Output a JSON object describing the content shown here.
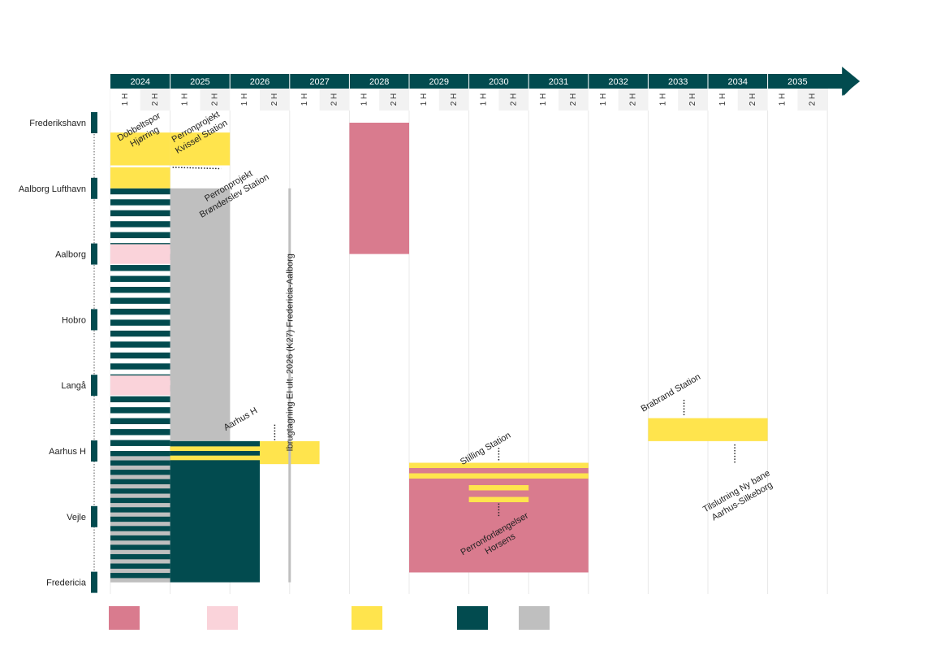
{
  "chart_data": {
    "type": "gantt",
    "title": "",
    "years": [
      "2024",
      "2025",
      "2026",
      "2027",
      "2028",
      "2029",
      "2030",
      "2031",
      "2032",
      "2033",
      "2034",
      "2035"
    ],
    "halves": [
      "1 H",
      "2 H"
    ],
    "stations": [
      "Frederikshavn",
      "Aalborg Lufthavn",
      "Aalborg",
      "Hobro",
      "Langå",
      "Aarhus H",
      "Vejle",
      "Fredericia"
    ],
    "colors": {
      "rose": "#d97b8e",
      "light_pink": "#fad3da",
      "yellow": "#ffe44d",
      "teal": "#024b4f",
      "grey": "#bfbfbf",
      "header": "#024b4f",
      "subheader": "#f2f2f2"
    },
    "bars": [
      {
        "name": "rose-2028",
        "color": "rose",
        "start": 2028.0,
        "end": 2029.0,
        "from": "Frederikshavn",
        "to": "Aalborg"
      },
      {
        "name": "yellow-hjorring",
        "color": "yellow",
        "start": 2024.0,
        "end": 2025.0,
        "from": 0.15,
        "to": 0.65
      },
      {
        "name": "yellow-hjorring-2",
        "color": "yellow",
        "start": 2024.0,
        "end": 2025.0,
        "from": 0.68,
        "to": 1.0
      },
      {
        "name": "yellow-kvissel",
        "color": "yellow",
        "start": 2025.0,
        "end": 2026.0,
        "from": 0.15,
        "to": 0.65
      },
      {
        "name": "grey-2025",
        "color": "grey",
        "start": 2025.0,
        "end": 2026.0,
        "from": "Aalborg Lufthavn",
        "to": 4.85
      },
      {
        "name": "grey-2024",
        "color": "grey",
        "start": 2024.0,
        "end": 2025.0,
        "from": "Aarhus H",
        "to": "Fredericia"
      },
      {
        "name": "teal-2025",
        "color": "teal",
        "start": 2025.0,
        "end": 2026.5,
        "from": 4.85,
        "to": "Fredericia"
      },
      {
        "name": "pink-aalborg",
        "color": "light_pink",
        "start": 2024.0,
        "end": 2025.0,
        "from": 1.85,
        "to": 2.15
      },
      {
        "name": "pink-langa",
        "color": "light_pink",
        "start": 2024.0,
        "end": 2025.0,
        "from": 3.85,
        "to": 4.15
      },
      {
        "name": "yellow-aarhus",
        "color": "yellow",
        "start": 2026.5,
        "end": 2027.5,
        "from": 4.85,
        "to": 5.2
      },
      {
        "name": "yellow-aarhus-line1",
        "color": "yellow",
        "start": 2025.0,
        "end": 2026.5,
        "from": 4.93,
        "to": 5.0
      },
      {
        "name": "yellow-aarhus-line2",
        "color": "yellow",
        "start": 2025.0,
        "end": 2026.5,
        "from": 5.07,
        "to": 5.14
      },
      {
        "name": "rose-horsens",
        "color": "rose",
        "start": 2029.0,
        "end": 2032.0,
        "from": 5.18,
        "to": 6.85
      },
      {
        "name": "yellow-skanderborg-1",
        "color": "yellow",
        "start": 2029.0,
        "end": 2032.0,
        "from": 5.18,
        "to": 5.26
      },
      {
        "name": "yellow-skanderborg-2",
        "color": "yellow",
        "start": 2029.0,
        "end": 2032.0,
        "from": 5.34,
        "to": 5.42
      },
      {
        "name": "yellow-horsens-1",
        "color": "yellow",
        "start": 2030.0,
        "end": 2031.0,
        "from": 5.52,
        "to": 5.6
      },
      {
        "name": "yellow-horsens-2",
        "color": "yellow",
        "start": 2030.0,
        "end": 2031.0,
        "from": 5.7,
        "to": 5.78
      },
      {
        "name": "yellow-brabrand-1",
        "color": "yellow",
        "start": 2033.0,
        "end": 2034.0,
        "from": 4.5,
        "to": 4.85
      },
      {
        "name": "yellow-brabrand-2",
        "color": "yellow",
        "start": 2034.0,
        "end": 2035.0,
        "from": 4.5,
        "to": 4.85
      }
    ],
    "striped": [
      {
        "name": "teal-stripes",
        "color": "teal",
        "alt": "white",
        "start": 2024.0,
        "end": 2025.0,
        "from": 1.0,
        "to": 5.0,
        "stripes": 24
      },
      {
        "name": "teal-grey-stripes",
        "color": "teal",
        "alt": "grey",
        "start": 2024.0,
        "end": 2025.0,
        "from": 5.0,
        "to": "Fredericia",
        "stripes": 14
      }
    ],
    "vline": {
      "x": 2027.0,
      "from": 1.0,
      "to": "Fredericia",
      "color": "grey"
    },
    "annotations": [
      {
        "text": "Dobbeltspor",
        "text2": "Hjørring",
        "x": 2024.5,
        "y": 0.1
      },
      {
        "text": "Perronprojekt",
        "text2": "Kvissel Station",
        "x": 2025.45,
        "y": 0.1
      },
      {
        "text": "Perronprojekt",
        "text2": "Brønderslev Station",
        "x": 2026.0,
        "y": 1.0
      },
      {
        "text": "Aarhus H",
        "text2": "",
        "x": 2026.2,
        "y": 4.55
      },
      {
        "text": "Ibrugtagning EI  ult. 2026 (K27) Fredericia-Aalborg",
        "text2": "",
        "x": 2027.05,
        "y": 3.5,
        "vertical": true
      },
      {
        "text": "Stilling Station",
        "text2": "",
        "x": 2030.3,
        "y": 5.0
      },
      {
        "text": "Perronforlængelser",
        "text2": "Horsens",
        "x": 2030.45,
        "y": 6.3
      },
      {
        "text": "Brabrand Station",
        "text2": "",
        "x": 2033.4,
        "y": 4.15
      },
      {
        "text": "Tilslutning Ny bane",
        "text2": "Aarhus-Silkeborg",
        "x": 2034.5,
        "y": 5.65
      }
    ],
    "legend": [
      {
        "color": "rose",
        "label": ""
      },
      {
        "color": "light_pink",
        "label": ""
      },
      {
        "color": "yellow",
        "label": ""
      },
      {
        "color": "teal",
        "label": ""
      },
      {
        "color": "grey",
        "label": ""
      }
    ]
  }
}
